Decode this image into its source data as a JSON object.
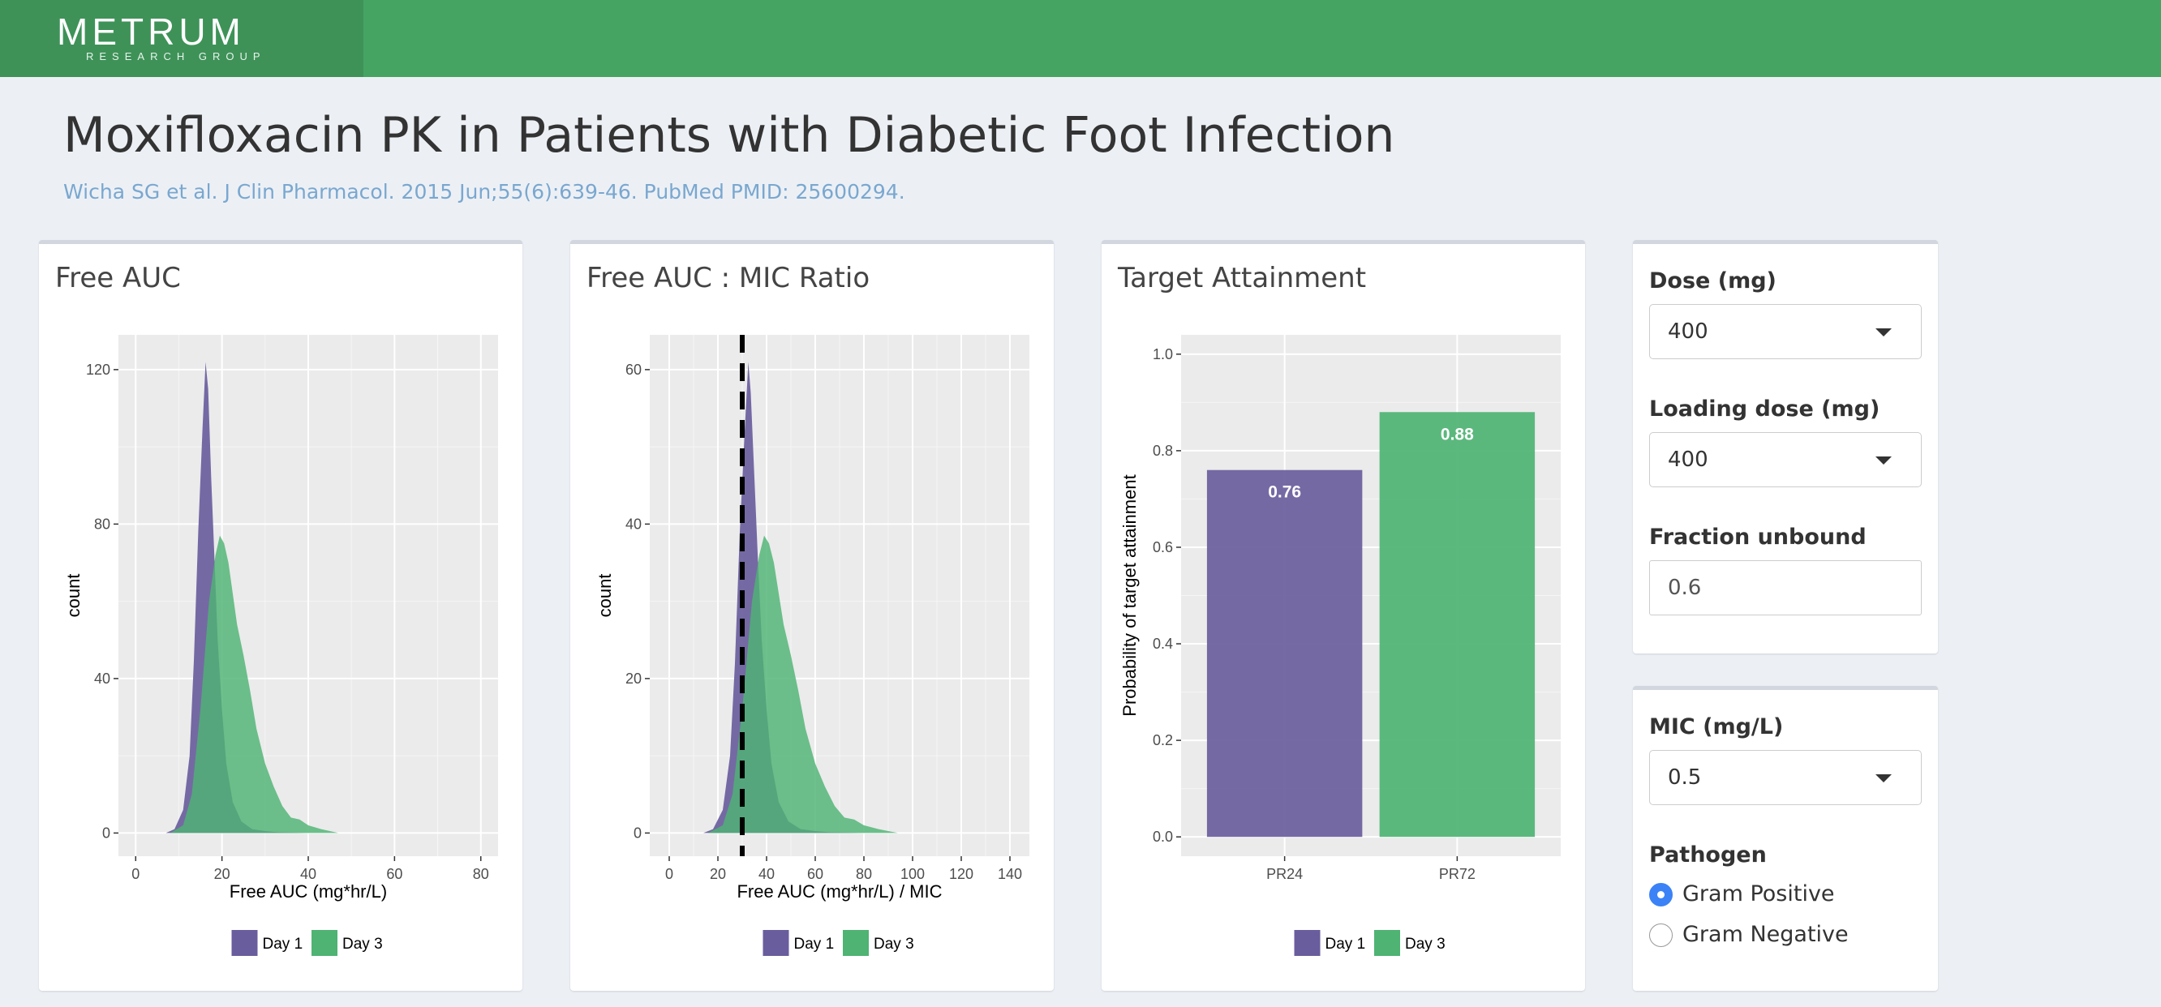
{
  "header": {
    "logo_text": "METRUM",
    "logo_subtext": "RESEARCH GROUP"
  },
  "page": {
    "title": "Moxifloxacin PK in Patients with Diabetic Foot Infection",
    "subtitle": "Wicha SG et al. J Clin Pharmacol. 2015 Jun;55(6):639-46. PubMed PMID: 25600294."
  },
  "colors": {
    "header_bg": "#46a463",
    "logo_bg": "#3e9258",
    "day1": "#6a5d9d",
    "day3": "#4eb373",
    "panel_bg": "#ebebeb",
    "subtitle": "#7aa7cf",
    "radio_checked": "#3b82f6"
  },
  "cards": {
    "free_auc": {
      "title": "Free AUC"
    },
    "auc_mic": {
      "title": "Free AUC : MIC Ratio"
    },
    "target": {
      "title": "Target Attainment"
    }
  },
  "controls": {
    "dose": {
      "label": "Dose (mg)",
      "value": "400"
    },
    "loading_dose": {
      "label": "Loading dose (mg)",
      "value": "400"
    },
    "fraction_unbound": {
      "label": "Fraction unbound",
      "value": "0.6"
    },
    "mic": {
      "label": "MIC (mg/L)",
      "value": "0.5"
    },
    "pathogen": {
      "label": "Pathogen",
      "options": [
        {
          "label": "Gram Positive",
          "checked": true
        },
        {
          "label": "Gram Negative",
          "checked": false
        }
      ]
    }
  },
  "chart_data": [
    {
      "type": "area",
      "title": "",
      "xlabel": "Free AUC (mg*hr/L)",
      "ylabel": "count",
      "xlim": [
        -4,
        84
      ],
      "ylim": [
        -6,
        129
      ],
      "xticks": [
        0,
        20,
        40,
        60,
        80
      ],
      "yticks": [
        0,
        40,
        80,
        120
      ],
      "grid": true,
      "legend": "bottom",
      "series": [
        {
          "name": "Day 1",
          "color": "#6a5d9d",
          "x": [
            7,
            9,
            11,
            12.5,
            13.5,
            14.5,
            15.5,
            16.2,
            16.8,
            17.5,
            18.3,
            19,
            20,
            21,
            22.5,
            24.5,
            27,
            30,
            33,
            40
          ],
          "y": [
            0,
            1,
            6,
            20,
            45,
            78,
            105,
            122,
            115,
            92,
            70,
            50,
            32,
            18,
            8,
            3,
            1,
            0.5,
            0.2,
            0
          ]
        },
        {
          "name": "Day 3",
          "color": "#4eb373",
          "x": [
            8,
            11,
            13,
            15,
            17,
            18.5,
            19.5,
            20.5,
            21.5,
            22.5,
            23.5,
            25,
            26.5,
            28,
            30,
            32,
            34,
            36,
            38,
            40,
            43,
            47
          ],
          "y": [
            0,
            2,
            10,
            32,
            60,
            72,
            77,
            75,
            70,
            62,
            54,
            46,
            37,
            27,
            18,
            12,
            7,
            4,
            3.5,
            2,
            1,
            0
          ]
        }
      ]
    },
    {
      "type": "area",
      "title": "",
      "xlabel": "Free AUC (mg*hr/L) / MIC",
      "ylabel": "count",
      "xlim": [
        -8,
        148
      ],
      "ylim": [
        -3,
        64.5
      ],
      "xticks": [
        0,
        20,
        40,
        60,
        80,
        100,
        120,
        140
      ],
      "yticks": [
        0,
        20,
        40,
        60
      ],
      "grid": true,
      "legend": "bottom",
      "reference_line": {
        "x": 30,
        "style": "dashed",
        "color": "#000000"
      },
      "series": [
        {
          "name": "Day 1",
          "color": "#6a5d9d",
          "x": [
            14,
            18,
            22,
            25,
            27,
            29,
            31,
            32.5,
            33.5,
            35,
            36.5,
            38,
            40,
            42,
            45,
            49,
            54,
            60,
            66,
            80
          ],
          "y": [
            0,
            0.5,
            3,
            10,
            22,
            39,
            52,
            61,
            57,
            46,
            35,
            25,
            16,
            9,
            4,
            1.5,
            0.5,
            0.25,
            0.1,
            0
          ]
        },
        {
          "name": "Day 3",
          "color": "#4eb373",
          "x": [
            16,
            22,
            26,
            30,
            34,
            37,
            39,
            41,
            43,
            45,
            47,
            50,
            53,
            56,
            60,
            64,
            68,
            72,
            76,
            80,
            86,
            94
          ],
          "y": [
            0,
            1,
            5,
            16,
            30,
            36,
            38.5,
            37.5,
            35,
            31,
            27,
            23,
            18.5,
            13.5,
            9,
            6,
            3.5,
            2,
            1.75,
            1,
            0.5,
            0
          ]
        }
      ]
    },
    {
      "type": "bar",
      "title": "",
      "xlabel": "",
      "ylabel": "Probability of target attainment",
      "categories": [
        "PR24",
        "PR72"
      ],
      "ylim": [
        -0.04,
        1.04
      ],
      "yticks": [
        0.0,
        0.2,
        0.4,
        0.6,
        0.8,
        1.0
      ],
      "grid": true,
      "legend": "bottom",
      "series": [
        {
          "name": "Day 1",
          "color": "#6a5d9d",
          "category": "PR24",
          "value": 0.76,
          "label": "0.76"
        },
        {
          "name": "Day 3",
          "color": "#4eb373",
          "category": "PR72",
          "value": 0.88,
          "label": "0.88"
        }
      ]
    }
  ]
}
